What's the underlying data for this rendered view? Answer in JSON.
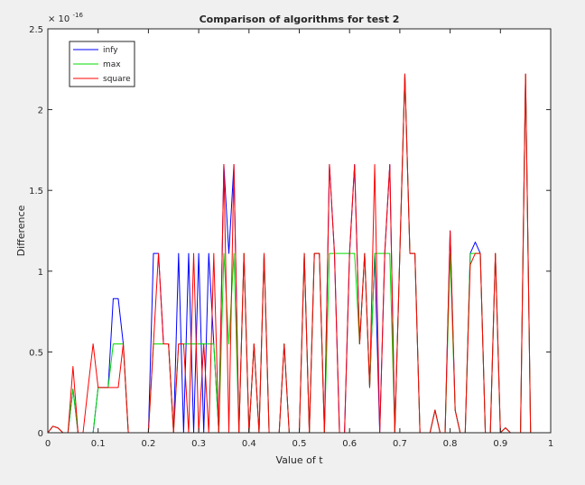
{
  "chart_data": {
    "type": "line",
    "title": "Comparison of algorithms for test 2",
    "xlabel": "Value of t",
    "ylabel": "Difference",
    "y_exponent_label": "× 10",
    "y_exponent_power": "-16",
    "xlim": [
      0,
      1
    ],
    "ylim": [
      0,
      2.5
    ],
    "grid": false,
    "legend_position": "top-left",
    "x_ticks": [
      "0",
      "0.1",
      "0.2",
      "0.3",
      "0.4",
      "0.5",
      "0.6",
      "0.7",
      "0.8",
      "0.9",
      "1"
    ],
    "y_ticks": [
      "0",
      "0.5",
      "1",
      "1.5",
      "2",
      "2.5"
    ],
    "series": [
      {
        "name": "infy",
        "color": "#0000ff",
        "points": [
          [
            0,
            0
          ],
          [
            0.01,
            0.04
          ],
          [
            0.02,
            0.03
          ],
          [
            0.03,
            0
          ],
          [
            0.04,
            0
          ],
          [
            0.05,
            0.27
          ],
          [
            0.06,
            0
          ],
          [
            0.07,
            0
          ],
          [
            0.08,
            0
          ],
          [
            0.09,
            0
          ],
          [
            0.1,
            0.28
          ],
          [
            0.11,
            0.28
          ],
          [
            0.12,
            0.28
          ],
          [
            0.13,
            0.83
          ],
          [
            0.14,
            0.83
          ],
          [
            0.15,
            0.55
          ],
          [
            0.16,
            0
          ],
          [
            0.17,
            0
          ],
          [
            0.18,
            0
          ],
          [
            0.19,
            0
          ],
          [
            0.2,
            0
          ],
          [
            0.21,
            1.11
          ],
          [
            0.22,
            1.11
          ],
          [
            0.23,
            0.55
          ],
          [
            0.24,
            0.55
          ],
          [
            0.25,
            0
          ],
          [
            0.26,
            1.11
          ],
          [
            0.27,
            0
          ],
          [
            0.28,
            1.11
          ],
          [
            0.29,
            0
          ],
          [
            0.3,
            1.11
          ],
          [
            0.31,
            0
          ],
          [
            0.32,
            1.11
          ],
          [
            0.33,
            0.55
          ],
          [
            0.34,
            0
          ],
          [
            0.35,
            1.66
          ],
          [
            0.36,
            1.11
          ],
          [
            0.37,
            1.66
          ],
          [
            0.38,
            0
          ],
          [
            0.39,
            1.11
          ],
          [
            0.4,
            0
          ],
          [
            0.41,
            0.55
          ],
          [
            0.42,
            0
          ],
          [
            0.43,
            1.11
          ],
          [
            0.44,
            0
          ],
          [
            0.45,
            0
          ],
          [
            0.46,
            0
          ],
          [
            0.47,
            0.55
          ],
          [
            0.48,
            0
          ],
          [
            0.49,
            0
          ],
          [
            0.5,
            0
          ],
          [
            0.51,
            1.11
          ],
          [
            0.52,
            0
          ],
          [
            0.53,
            1.11
          ],
          [
            0.54,
            1.11
          ],
          [
            0.55,
            0
          ],
          [
            0.56,
            1.66
          ],
          [
            0.57,
            1.11
          ],
          [
            0.58,
            0
          ],
          [
            0.59,
            0
          ],
          [
            0.6,
            1.11
          ],
          [
            0.61,
            1.66
          ],
          [
            0.62,
            0.55
          ],
          [
            0.63,
            1.11
          ],
          [
            0.64,
            0.28
          ],
          [
            0.65,
            1.11
          ],
          [
            0.66,
            0
          ],
          [
            0.67,
            1.11
          ],
          [
            0.68,
            1.66
          ],
          [
            0.69,
            0
          ],
          [
            0.7,
            1.11
          ],
          [
            0.71,
            2.22
          ],
          [
            0.72,
            1.11
          ],
          [
            0.73,
            1.11
          ],
          [
            0.74,
            0
          ],
          [
            0.75,
            0
          ],
          [
            0.76,
            0
          ],
          [
            0.77,
            0.14
          ],
          [
            0.78,
            0
          ],
          [
            0.79,
            0
          ],
          [
            0.8,
            1.25
          ],
          [
            0.81,
            0.14
          ],
          [
            0.82,
            0
          ],
          [
            0.83,
            0
          ],
          [
            0.84,
            1.11
          ],
          [
            0.85,
            1.18
          ],
          [
            0.86,
            1.11
          ],
          [
            0.87,
            0
          ],
          [
            0.88,
            0
          ],
          [
            0.89,
            1.11
          ],
          [
            0.9,
            0
          ],
          [
            0.91,
            0.03
          ],
          [
            0.92,
            0
          ],
          [
            0.93,
            0
          ],
          [
            0.94,
            0
          ],
          [
            0.95,
            2.22
          ],
          [
            0.96,
            0
          ],
          [
            0.97,
            0
          ],
          [
            0.98,
            0
          ]
        ]
      },
      {
        "name": "max",
        "color": "#00dd00",
        "points": [
          [
            0,
            0
          ],
          [
            0.01,
            0.04
          ],
          [
            0.02,
            0.03
          ],
          [
            0.03,
            0
          ],
          [
            0.04,
            0
          ],
          [
            0.05,
            0.27
          ],
          [
            0.06,
            0
          ],
          [
            0.07,
            0
          ],
          [
            0.08,
            0
          ],
          [
            0.09,
            0
          ],
          [
            0.1,
            0.28
          ],
          [
            0.11,
            0.28
          ],
          [
            0.12,
            0.28
          ],
          [
            0.13,
            0.55
          ],
          [
            0.14,
            0.55
          ],
          [
            0.15,
            0.55
          ],
          [
            0.16,
            0
          ],
          [
            0.17,
            0
          ],
          [
            0.18,
            0
          ],
          [
            0.19,
            0
          ],
          [
            0.2,
            0
          ],
          [
            0.21,
            0.55
          ],
          [
            0.22,
            0.55
          ],
          [
            0.23,
            0.55
          ],
          [
            0.24,
            0.55
          ],
          [
            0.25,
            0
          ],
          [
            0.26,
            0.55
          ],
          [
            0.27,
            0.55
          ],
          [
            0.28,
            0.55
          ],
          [
            0.29,
            0.55
          ],
          [
            0.3,
            0.55
          ],
          [
            0.31,
            0.55
          ],
          [
            0.32,
            0.55
          ],
          [
            0.33,
            0.55
          ],
          [
            0.34,
            0
          ],
          [
            0.35,
            1.11
          ],
          [
            0.36,
            0.55
          ],
          [
            0.37,
            1.11
          ],
          [
            0.38,
            0
          ],
          [
            0.39,
            1.11
          ],
          [
            0.4,
            0
          ],
          [
            0.41,
            0.55
          ],
          [
            0.42,
            0
          ],
          [
            0.43,
            1.11
          ],
          [
            0.44,
            0
          ],
          [
            0.45,
            0
          ],
          [
            0.46,
            0
          ],
          [
            0.47,
            0.55
          ],
          [
            0.48,
            0
          ],
          [
            0.49,
            0
          ],
          [
            0.5,
            0
          ],
          [
            0.51,
            1.11
          ],
          [
            0.52,
            0
          ],
          [
            0.53,
            1.11
          ],
          [
            0.54,
            1.11
          ],
          [
            0.55,
            0
          ],
          [
            0.56,
            1.11
          ],
          [
            0.57,
            1.11
          ],
          [
            0.58,
            1.11
          ],
          [
            0.59,
            1.11
          ],
          [
            0.6,
            1.11
          ],
          [
            0.61,
            1.11
          ],
          [
            0.62,
            0.55
          ],
          [
            0.63,
            1.11
          ],
          [
            0.64,
            0.28
          ],
          [
            0.65,
            1.11
          ],
          [
            0.66,
            1.11
          ],
          [
            0.67,
            1.11
          ],
          [
            0.68,
            1.11
          ],
          [
            0.69,
            0
          ],
          [
            0.7,
            1.11
          ],
          [
            0.71,
            2.22
          ],
          [
            0.72,
            1.11
          ],
          [
            0.73,
            1.11
          ],
          [
            0.74,
            0
          ],
          [
            0.75,
            0
          ],
          [
            0.76,
            0
          ],
          [
            0.77,
            0.14
          ],
          [
            0.78,
            0
          ],
          [
            0.79,
            0
          ],
          [
            0.8,
            1.11
          ],
          [
            0.81,
            0.14
          ],
          [
            0.82,
            0
          ],
          [
            0.83,
            0
          ],
          [
            0.84,
            1.11
          ],
          [
            0.85,
            1.11
          ],
          [
            0.86,
            1.11
          ],
          [
            0.87,
            0
          ],
          [
            0.88,
            0
          ],
          [
            0.89,
            1.11
          ],
          [
            0.9,
            0
          ],
          [
            0.91,
            0.03
          ],
          [
            0.92,
            0
          ],
          [
            0.93,
            0
          ],
          [
            0.94,
            0
          ],
          [
            0.95,
            2.22
          ],
          [
            0.96,
            0
          ],
          [
            0.97,
            0
          ],
          [
            0.98,
            0
          ]
        ]
      },
      {
        "name": "square",
        "color": "#ff0000",
        "points": [
          [
            0,
            0
          ],
          [
            0.01,
            0.04
          ],
          [
            0.02,
            0.03
          ],
          [
            0.03,
            0
          ],
          [
            0.04,
            0
          ],
          [
            0.05,
            0.41
          ],
          [
            0.06,
            0
          ],
          [
            0.07,
            0
          ],
          [
            0.08,
            0.28
          ],
          [
            0.09,
            0.55
          ],
          [
            0.1,
            0.28
          ],
          [
            0.11,
            0.28
          ],
          [
            0.12,
            0.28
          ],
          [
            0.13,
            0.28
          ],
          [
            0.14,
            0.28
          ],
          [
            0.15,
            0.55
          ],
          [
            0.16,
            0
          ],
          [
            0.17,
            0
          ],
          [
            0.18,
            0
          ],
          [
            0.19,
            0
          ],
          [
            0.2,
            0
          ],
          [
            0.21,
            0.55
          ],
          [
            0.22,
            1.11
          ],
          [
            0.23,
            0.55
          ],
          [
            0.24,
            0.55
          ],
          [
            0.25,
            0
          ],
          [
            0.26,
            0.55
          ],
          [
            0.27,
            0.55
          ],
          [
            0.28,
            0
          ],
          [
            0.29,
            1.11
          ],
          [
            0.3,
            0
          ],
          [
            0.31,
            0.55
          ],
          [
            0.32,
            0
          ],
          [
            0.33,
            1.11
          ],
          [
            0.34,
            0
          ],
          [
            0.35,
            1.66
          ],
          [
            0.36,
            0
          ],
          [
            0.37,
            1.66
          ],
          [
            0.38,
            0
          ],
          [
            0.39,
            1.11
          ],
          [
            0.4,
            0
          ],
          [
            0.41,
            0.55
          ],
          [
            0.42,
            0
          ],
          [
            0.43,
            1.11
          ],
          [
            0.44,
            0
          ],
          [
            0.45,
            0
          ],
          [
            0.46,
            0
          ],
          [
            0.47,
            0.55
          ],
          [
            0.48,
            0
          ],
          [
            0.49,
            0
          ],
          [
            0.5,
            0
          ],
          [
            0.51,
            1.11
          ],
          [
            0.52,
            0
          ],
          [
            0.53,
            1.11
          ],
          [
            0.54,
            1.11
          ],
          [
            0.55,
            0
          ],
          [
            0.56,
            1.66
          ],
          [
            0.57,
            1.11
          ],
          [
            0.58,
            0
          ],
          [
            0.59,
            0
          ],
          [
            0.6,
            1.11
          ],
          [
            0.61,
            1.66
          ],
          [
            0.62,
            0.55
          ],
          [
            0.63,
            1.11
          ],
          [
            0.64,
            0.28
          ],
          [
            0.65,
            1.66
          ],
          [
            0.66,
            0
          ],
          [
            0.67,
            1.11
          ],
          [
            0.68,
            1.66
          ],
          [
            0.69,
            0
          ],
          [
            0.7,
            1.11
          ],
          [
            0.71,
            2.22
          ],
          [
            0.72,
            1.11
          ],
          [
            0.73,
            1.11
          ],
          [
            0.74,
            0
          ],
          [
            0.75,
            0
          ],
          [
            0.76,
            0
          ],
          [
            0.77,
            0.14
          ],
          [
            0.78,
            0
          ],
          [
            0.79,
            0
          ],
          [
            0.8,
            1.25
          ],
          [
            0.81,
            0.14
          ],
          [
            0.82,
            0
          ],
          [
            0.83,
            0
          ],
          [
            0.84,
            1.04
          ],
          [
            0.85,
            1.11
          ],
          [
            0.86,
            1.11
          ],
          [
            0.87,
            0
          ],
          [
            0.88,
            0
          ],
          [
            0.89,
            1.11
          ],
          [
            0.9,
            0
          ],
          [
            0.91,
            0.03
          ],
          [
            0.92,
            0
          ],
          [
            0.93,
            0
          ],
          [
            0.94,
            0
          ],
          [
            0.95,
            2.22
          ],
          [
            0.96,
            0
          ],
          [
            0.97,
            0
          ],
          [
            0.98,
            0
          ]
        ]
      }
    ]
  }
}
